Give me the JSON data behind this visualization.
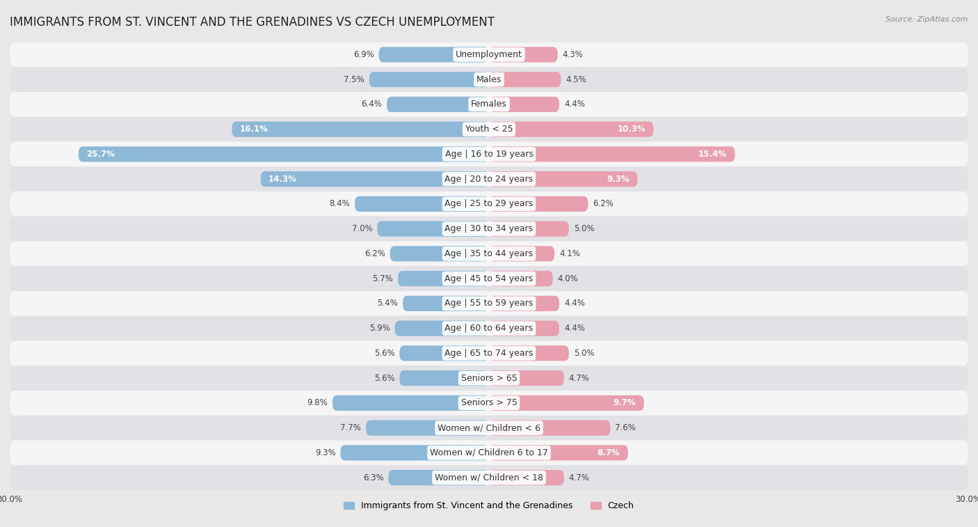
{
  "title": "IMMIGRANTS FROM ST. VINCENT AND THE GRENADINES VS CZECH UNEMPLOYMENT",
  "source": "Source: ZipAtlas.com",
  "categories": [
    "Unemployment",
    "Males",
    "Females",
    "Youth < 25",
    "Age | 16 to 19 years",
    "Age | 20 to 24 years",
    "Age | 25 to 29 years",
    "Age | 30 to 34 years",
    "Age | 35 to 44 years",
    "Age | 45 to 54 years",
    "Age | 55 to 59 years",
    "Age | 60 to 64 years",
    "Age | 65 to 74 years",
    "Seniors > 65",
    "Seniors > 75",
    "Women w/ Children < 6",
    "Women w/ Children 6 to 17",
    "Women w/ Children < 18"
  ],
  "left_values": [
    6.9,
    7.5,
    6.4,
    16.1,
    25.7,
    14.3,
    8.4,
    7.0,
    6.2,
    5.7,
    5.4,
    5.9,
    5.6,
    5.6,
    9.8,
    7.7,
    9.3,
    6.3
  ],
  "right_values": [
    4.3,
    4.5,
    4.4,
    10.3,
    15.4,
    9.3,
    6.2,
    5.0,
    4.1,
    4.0,
    4.4,
    4.4,
    5.0,
    4.7,
    9.7,
    7.6,
    8.7,
    4.7
  ],
  "left_color": "#8db8d8",
  "right_color": "#e8a0b0",
  "left_label": "Immigrants from St. Vincent and the Grenadines",
  "right_label": "Czech",
  "xlim": 30.0,
  "bg_color": "#e8e8e8",
  "row_color_light": "#f5f5f5",
  "row_color_dark": "#e2e2e6",
  "title_fontsize": 12,
  "label_fontsize": 9,
  "value_fontsize": 8.5,
  "legend_fontsize": 9,
  "source_fontsize": 8
}
